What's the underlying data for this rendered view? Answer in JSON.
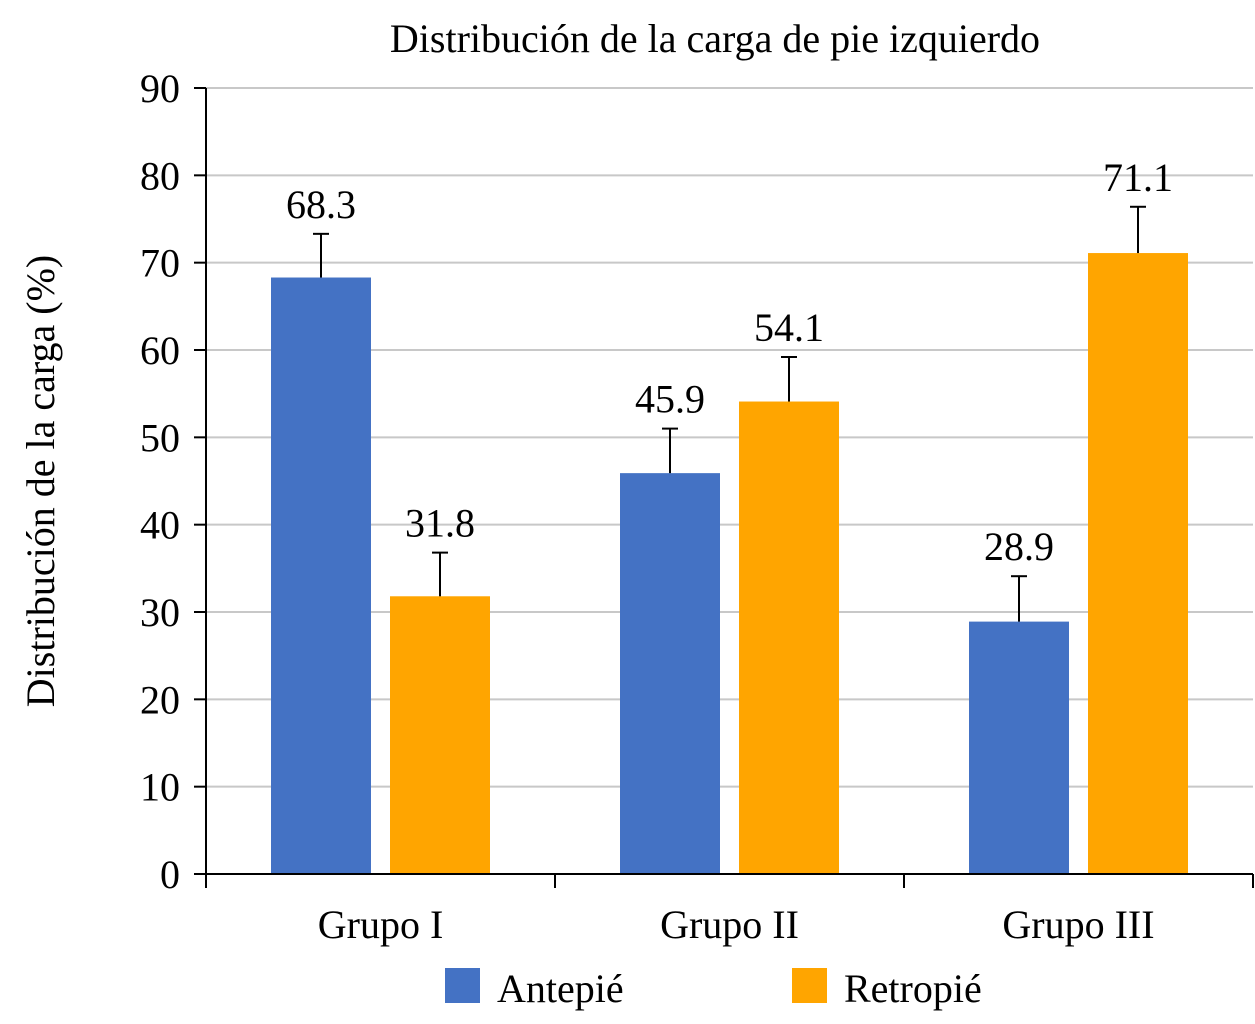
{
  "chart_data": {
    "type": "bar",
    "title": "Distribución de la carga de pie izquierdo",
    "ylabel": "Distribución de la carga (%)",
    "xlabel": "",
    "ylim": [
      0,
      90
    ],
    "yticks": [
      0,
      10,
      20,
      30,
      40,
      50,
      60,
      70,
      80,
      90
    ],
    "categories": [
      "Grupo I",
      "Grupo II",
      "Grupo III"
    ],
    "series": [
      {
        "name": "Antepié",
        "color": "#4472C4",
        "values": [
          68.3,
          45.9,
          28.9
        ],
        "labels": [
          "68.3",
          "45.9",
          "28.9"
        ],
        "error": [
          5.0,
          5.1,
          5.2
        ]
      },
      {
        "name": "Retropié",
        "color": "#FFA500",
        "values": [
          31.8,
          54.1,
          71.1
        ],
        "labels": [
          "31.8",
          "54.1",
          "71.1"
        ],
        "error": [
          5.0,
          5.1,
          5.3
        ]
      }
    ],
    "grid": true,
    "legend_position": "bottom"
  }
}
